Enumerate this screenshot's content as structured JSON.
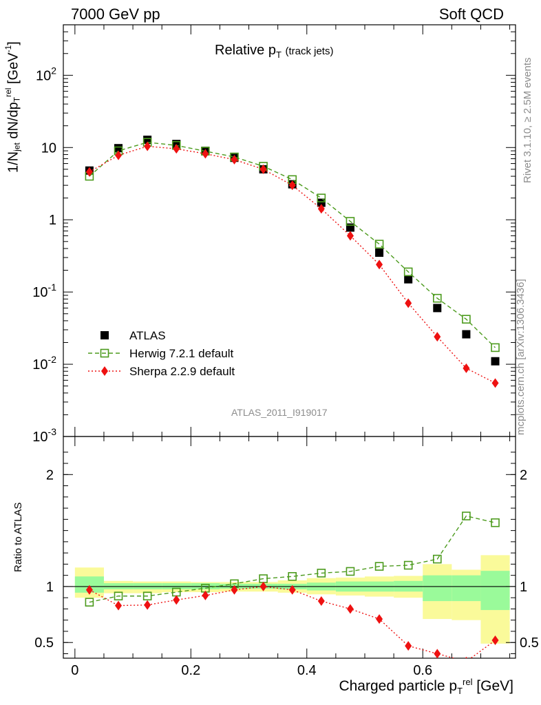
{
  "header": {
    "left": "7000 GeV pp",
    "right": "Soft QCD"
  },
  "side_text": {
    "rivet": "Rivet 3.1.10, ≥ 2.5M events",
    "mcplots": "mcplots.cern.ch [arXiv:1306.3436]"
  },
  "analysis_id": "ATLAS_2011_I919017",
  "chart_data": [
    {
      "type": "scatter",
      "panel": "main",
      "title": "Relative p_T (track jets)",
      "xlabel": "",
      "ylabel": "1/N_jet dN/dp_T^rel [GeV^-1]",
      "yscale": "log",
      "xlim": [
        -0.02,
        0.76
      ],
      "ylim": [
        0.001,
        500
      ],
      "yticks": [
        {
          "value": 0.001,
          "label": "10^-3"
        },
        {
          "value": 0.01,
          "label": "10^-2"
        },
        {
          "value": 0.1,
          "label": "10^-1"
        },
        {
          "value": 1,
          "label": "1"
        },
        {
          "value": 10,
          "label": "10"
        },
        {
          "value": 100,
          "label": "10^2"
        }
      ],
      "legend_position": "bottom-left",
      "x": [
        0.025,
        0.075,
        0.125,
        0.175,
        0.225,
        0.275,
        0.325,
        0.375,
        0.425,
        0.475,
        0.525,
        0.575,
        0.625,
        0.675,
        0.725
      ],
      "series": [
        {
          "name": "ATLAS",
          "marker": "square",
          "color": "#000000",
          "values": [
            4.8,
            9.8,
            12.8,
            11.2,
            9.0,
            7.2,
            5.0,
            3.1,
            1.72,
            0.78,
            0.35,
            0.15,
            0.06,
            0.026,
            0.011
          ]
        },
        {
          "name": "Herwig 7.2.1 default",
          "marker": "open-square",
          "line": "dashed",
          "color": "#4b9a1c",
          "values": [
            4.0,
            9.0,
            11.8,
            10.7,
            8.9,
            7.4,
            5.5,
            3.6,
            2.0,
            0.95,
            0.46,
            0.19,
            0.082,
            0.042,
            0.017
          ]
        },
        {
          "name": "Sherpa 2.2.9 default",
          "marker": "diamond",
          "line": "dotted",
          "color": "#ee1111",
          "values": [
            4.6,
            7.8,
            10.4,
            9.6,
            8.2,
            6.8,
            5.0,
            3.0,
            1.42,
            0.6,
            0.24,
            0.07,
            0.024,
            0.0088,
            0.0055
          ]
        }
      ]
    },
    {
      "type": "scatter",
      "panel": "ratio",
      "xlabel": "Charged particle p_T^rel [GeV]",
      "ylabel": "Ratio to ATLAS",
      "xlim": [
        -0.02,
        0.76
      ],
      "ylim": [
        0.36,
        2.34
      ],
      "xticks": [
        0,
        0.2,
        0.4,
        0.6
      ],
      "yticks": [
        0.5,
        1,
        2
      ],
      "x": [
        0.025,
        0.075,
        0.125,
        0.175,
        0.225,
        0.275,
        0.325,
        0.375,
        0.425,
        0.475,
        0.525,
        0.575,
        0.625,
        0.675,
        0.725
      ],
      "bands": {
        "bins": [
          0,
          0.05,
          0.1,
          0.15,
          0.2,
          0.25,
          0.3,
          0.35,
          0.4,
          0.45,
          0.5,
          0.55,
          0.6,
          0.65,
          0.7,
          0.75
        ],
        "inner": [
          [
            0.945,
            1.09
          ],
          [
            0.975,
            1.03
          ],
          [
            0.975,
            1.03
          ],
          [
            0.975,
            1.03
          ],
          [
            0.975,
            1.03
          ],
          [
            0.98,
            1.025
          ],
          [
            0.98,
            1.025
          ],
          [
            0.975,
            1.025
          ],
          [
            0.965,
            1.035
          ],
          [
            0.955,
            1.045
          ],
          [
            0.955,
            1.045
          ],
          [
            0.955,
            1.05
          ],
          [
            0.87,
            1.1
          ],
          [
            0.87,
            1.1
          ],
          [
            0.79,
            1.14
          ]
        ],
        "outer": [
          [
            0.9,
            1.17
          ],
          [
            0.94,
            1.05
          ],
          [
            0.94,
            1.045
          ],
          [
            0.95,
            1.045
          ],
          [
            0.95,
            1.04
          ],
          [
            0.955,
            1.04
          ],
          [
            0.955,
            1.04
          ],
          [
            0.945,
            1.055
          ],
          [
            0.93,
            1.075
          ],
          [
            0.92,
            1.08
          ],
          [
            0.91,
            1.09
          ],
          [
            0.9,
            1.095
          ],
          [
            0.71,
            1.2
          ],
          [
            0.7,
            1.15
          ],
          [
            0.49,
            1.28
          ]
        ],
        "inner_color": "#9afa9a",
        "outer_color": "#fafa9a"
      },
      "series": [
        {
          "name": "Herwig 7.2.1 default",
          "marker": "open-square",
          "line": "dashed",
          "color": "#4b9a1c",
          "values": [
            0.86,
            0.915,
            0.915,
            0.95,
            0.985,
            1.025,
            1.07,
            1.09,
            1.12,
            1.135,
            1.18,
            1.19,
            1.245,
            1.63,
            1.57
          ]
        },
        {
          "name": "Sherpa 2.2.9 default",
          "marker": "diamond",
          "line": "dotted",
          "color": "#ee1111",
          "values": [
            0.97,
            0.83,
            0.835,
            0.88,
            0.92,
            0.97,
            1.0,
            0.97,
            0.87,
            0.8,
            0.71,
            0.47,
            0.4,
            0.33,
            0.52
          ]
        }
      ]
    }
  ]
}
